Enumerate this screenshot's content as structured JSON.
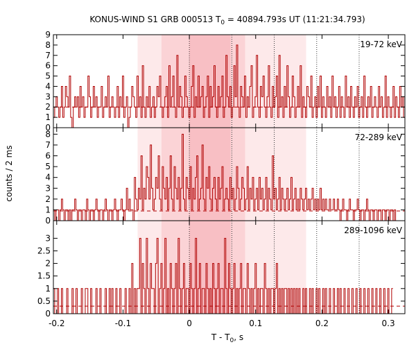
{
  "chart_data": {
    "type": "line",
    "title_main": "KONUS-WIND S1 GRB 000513 T",
    "title_sub": "0",
    "title_rest": " = 40894.793s UT (11:21:34.793)",
    "xlabel_main": "T - T",
    "xlabel_sub": "0",
    "xlabel_rest": ", s",
    "ylabel": "counts / 2 ms",
    "xlim": [
      -0.205,
      0.325
    ],
    "x_ticks": [
      -0.2,
      -0.1,
      0,
      0.1,
      0.2,
      0.3
    ],
    "x_tick_labels": [
      "-0.2",
      "-0.1",
      "0",
      "0.1",
      "0.2",
      "0.3"
    ],
    "bin_width_s": 0.002,
    "colors": {
      "histogram": "#b00000",
      "background": "#b00000",
      "band_light": "#fde9ea",
      "band_mid": "#fbd3d6",
      "band_dark": "#f8bfc4",
      "frame": "#000000",
      "dotted": "#333333"
    },
    "shaded_intervals": [
      {
        "x0": -0.078,
        "x1": 0.176,
        "level": "light"
      },
      {
        "x0": -0.042,
        "x1": 0.084,
        "level": "mid"
      },
      {
        "x0": 0.0,
        "x1": 0.062,
        "level": "dark"
      }
    ],
    "vertical_dotted_x": [
      0.0,
      0.064,
      0.128,
      0.192,
      0.256
    ],
    "panels": [
      {
        "band": "19-72 keV",
        "ylim": [
          0,
          9
        ],
        "y_ticks": [
          0,
          1,
          2,
          3,
          4,
          5,
          6,
          7,
          8,
          9
        ],
        "y_tick_labels": [
          "0",
          "1",
          "2",
          "3",
          "4",
          "5",
          "6",
          "7",
          "8",
          "9"
        ],
        "background_level": 2.0,
        "counts": [
          1,
          2,
          3,
          2,
          1,
          2,
          4,
          1,
          2,
          4,
          3,
          2,
          5,
          1,
          0,
          2,
          3,
          2,
          3,
          1,
          4,
          2,
          3,
          1,
          2,
          2,
          5,
          3,
          1,
          2,
          4,
          2,
          3,
          1,
          2,
          2,
          4,
          1,
          2,
          3,
          2,
          5,
          1,
          2,
          3,
          2,
          1,
          2,
          4,
          1,
          3,
          2,
          5,
          1,
          2,
          3,
          0,
          1,
          2,
          4,
          3,
          2,
          1,
          5,
          2,
          3,
          1,
          6,
          2,
          1,
          3,
          2,
          4,
          1,
          2,
          3,
          1,
          2,
          4,
          3,
          5,
          2,
          1,
          2,
          3,
          4,
          1,
          6,
          2,
          3,
          5,
          2,
          1,
          7,
          2,
          4,
          3,
          1,
          2,
          5,
          3,
          2,
          1,
          2,
          4,
          6,
          1,
          3,
          2,
          5,
          2,
          3,
          4,
          1,
          2,
          3,
          5,
          1,
          4,
          2,
          3,
          6,
          2,
          1,
          4,
          2,
          3,
          5,
          1,
          2,
          7,
          3,
          2,
          4,
          1,
          2,
          6,
          3,
          8,
          2,
          1,
          4,
          3,
          2,
          5,
          1,
          3,
          2,
          4,
          6,
          1,
          2,
          3,
          7,
          2,
          1,
          4,
          3,
          5,
          2,
          1,
          3,
          6,
          2,
          1,
          4,
          2,
          3,
          5,
          1,
          7,
          2,
          3,
          1,
          4,
          2,
          6,
          3,
          1,
          2,
          5,
          3,
          1,
          2,
          4,
          2,
          6,
          1,
          3,
          2,
          1,
          4,
          3,
          2,
          5,
          1,
          2,
          3,
          1,
          4,
          2,
          5,
          1,
          3,
          2,
          1,
          4,
          2,
          3,
          1,
          5,
          2,
          3,
          1,
          2,
          4,
          1,
          3,
          2,
          1,
          5,
          2,
          3,
          1,
          4,
          2,
          1,
          3,
          2,
          4,
          1,
          2,
          3,
          1,
          5,
          2,
          1,
          3,
          2,
          4,
          1,
          2,
          3,
          2,
          1,
          4,
          2,
          3,
          1,
          2,
          5,
          1,
          3,
          2,
          1,
          2,
          4,
          1,
          3,
          2,
          1,
          4,
          2,
          3,
          1,
          2,
          3,
          1,
          5,
          2,
          1,
          3,
          2,
          1
        ]
      },
      {
        "band": "72-289 keV",
        "ylim": [
          0,
          8.6
        ],
        "y_ticks": [
          0,
          1,
          2,
          3,
          4,
          5,
          6,
          7,
          8
        ],
        "y_tick_labels": [
          "0",
          "1",
          "2",
          "3",
          "4",
          "5",
          "6",
          "7",
          "8"
        ],
        "background_level": 0.9,
        "counts": [
          1,
          0,
          1,
          1,
          0,
          1,
          2,
          1,
          0,
          1,
          1,
          0,
          1,
          0,
          1,
          1,
          2,
          1,
          0,
          1,
          1,
          0,
          1,
          1,
          0,
          2,
          1,
          0,
          1,
          1,
          0,
          1,
          2,
          1,
          0,
          1,
          1,
          0,
          1,
          2,
          1,
          0,
          1,
          1,
          0,
          1,
          2,
          1,
          0,
          1,
          1,
          2,
          1,
          0,
          1,
          3,
          1,
          2,
          1,
          1,
          0,
          4,
          2,
          1,
          3,
          2,
          6,
          1,
          3,
          2,
          5,
          4,
          2,
          7,
          3,
          1,
          2,
          4,
          3,
          6,
          2,
          1,
          5,
          3,
          2,
          4,
          1,
          3,
          6,
          2,
          1,
          5,
          3,
          2,
          4,
          1,
          3,
          8,
          2,
          1,
          4,
          3,
          2,
          5,
          1,
          3,
          2,
          4,
          6,
          1,
          2,
          3,
          7,
          2,
          1,
          4,
          3,
          5,
          2,
          1,
          3,
          4,
          2,
          1,
          4,
          2,
          3,
          5,
          1,
          2,
          3,
          2,
          1,
          4,
          2,
          3,
          1,
          2,
          5,
          3,
          1,
          2,
          4,
          3,
          1,
          2,
          5,
          1,
          3,
          2,
          4,
          1,
          2,
          3,
          1,
          4,
          2,
          3,
          1,
          2,
          4,
          1,
          3,
          2,
          1,
          6,
          2,
          3,
          1,
          2,
          4,
          1,
          3,
          2,
          1,
          2,
          3,
          1,
          2,
          4,
          1,
          2,
          3,
          1,
          2,
          1,
          3,
          2,
          1,
          2,
          3,
          1,
          2,
          1,
          2,
          3,
          1,
          2,
          1,
          2,
          1,
          3,
          1,
          2,
          1,
          2,
          1,
          1,
          2,
          1,
          1,
          2,
          1,
          1,
          2,
          1,
          0,
          1,
          2,
          1,
          1,
          0,
          1,
          2,
          1,
          1,
          0,
          1,
          1,
          2,
          1,
          0,
          1,
          1,
          0,
          1,
          2,
          1,
          0,
          1,
          1,
          0,
          1,
          1,
          0,
          1,
          1,
          0,
          1,
          1,
          0,
          1,
          1,
          0,
          1,
          1,
          0,
          1,
          0
        ]
      },
      {
        "band": "289-1096 keV",
        "ylim": [
          0,
          3.7
        ],
        "y_ticks": [
          0,
          0.5,
          1,
          1.5,
          2,
          2.5,
          3
        ],
        "y_tick_labels": [
          "0",
          "0.5",
          "1",
          "1.5",
          "2",
          "2.5",
          "3"
        ],
        "background_level": 0.3,
        "counts": [
          1,
          0,
          0,
          1,
          0,
          0,
          1,
          0,
          0,
          0,
          1,
          0,
          0,
          0,
          1,
          0,
          0,
          1,
          0,
          0,
          0,
          1,
          0,
          0,
          1,
          1,
          0,
          0,
          1,
          0,
          0,
          0,
          1,
          0,
          0,
          1,
          0,
          0,
          0,
          1,
          0,
          0,
          1,
          0,
          1,
          0,
          0,
          1,
          0,
          0,
          1,
          0,
          0,
          0,
          1,
          0,
          0,
          1,
          0,
          2,
          0,
          1,
          0,
          1,
          1,
          3,
          0,
          2,
          1,
          0,
          3,
          1,
          0,
          2,
          1,
          1,
          0,
          2,
          3,
          0,
          1,
          2,
          0,
          1,
          3,
          0,
          1,
          0,
          2,
          1,
          0,
          1,
          2,
          0,
          3,
          1,
          0,
          1,
          2,
          0,
          1,
          1,
          0,
          2,
          1,
          0,
          1,
          3,
          0,
          1,
          2,
          0,
          1,
          1,
          0,
          2,
          1,
          0,
          1,
          0,
          2,
          1,
          0,
          1,
          2,
          0,
          1,
          1,
          0,
          3,
          1,
          0,
          2,
          1,
          0,
          1,
          2,
          0,
          1,
          0,
          1,
          2,
          0,
          1,
          1,
          0,
          2,
          1,
          0,
          1,
          0,
          1,
          2,
          0,
          1,
          0,
          1,
          1,
          0,
          2,
          1,
          0,
          1,
          0,
          1,
          1,
          0,
          1,
          2,
          0,
          1,
          0,
          1,
          0,
          1,
          1,
          0,
          1,
          0,
          1,
          0,
          1,
          0,
          1,
          0,
          1,
          0,
          0,
          1,
          0,
          1,
          0,
          0,
          1,
          0,
          1,
          0,
          0,
          1,
          0,
          1,
          0,
          0,
          1,
          0,
          1,
          0,
          0,
          1,
          0,
          0,
          1,
          0,
          0,
          1,
          0,
          1,
          0,
          0,
          1,
          0,
          0,
          1,
          0,
          0,
          1,
          0,
          0,
          1,
          0,
          0,
          1,
          0,
          0,
          1,
          0,
          0,
          1,
          0,
          0,
          1,
          0,
          0,
          1,
          0,
          0,
          1,
          0,
          0,
          1,
          0,
          0,
          1,
          0,
          0,
          1
        ]
      }
    ]
  }
}
